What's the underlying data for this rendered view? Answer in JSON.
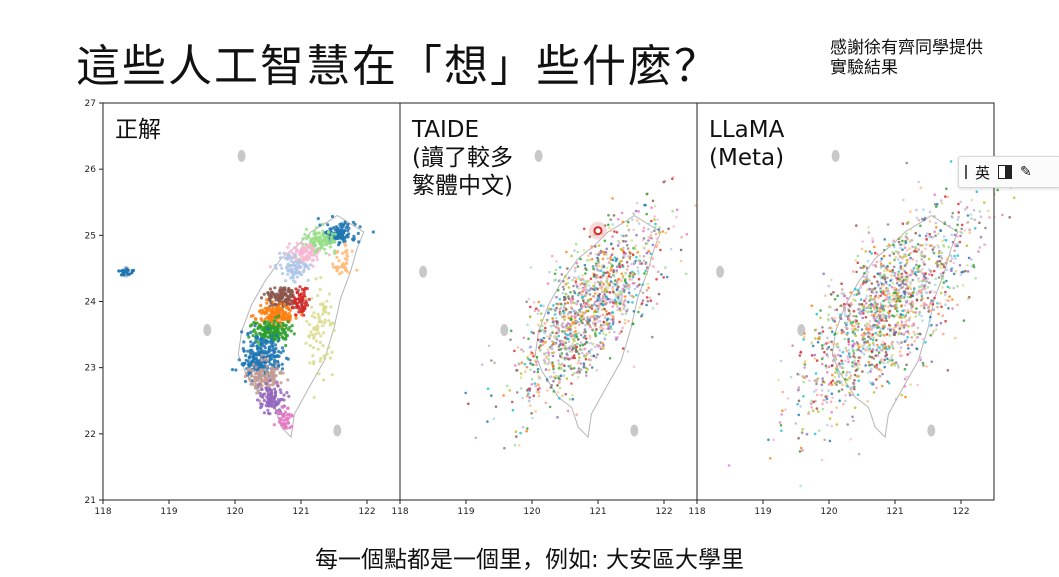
{
  "title": "這些人工智慧在「想」些什麼？",
  "credit": [
    "感謝徐有齊同學提供",
    "實驗結果"
  ],
  "caption": "每一個點都是一個里，例如: 大安區大學里",
  "ime_toolbar": {
    "lang_label": "英",
    "mode_icon": "half-width-icon",
    "tool_icon": "settings-icon"
  },
  "chart_data": [
    {
      "type": "scatter",
      "panel_label": [
        "正解"
      ],
      "xlim": [
        118,
        122.5
      ],
      "ylim": [
        21,
        27
      ],
      "xticks": [
        118,
        119,
        120,
        121,
        122
      ],
      "yticks": [
        21,
        22,
        23,
        24,
        25,
        26,
        27
      ],
      "ytick_labels": [
        "21",
        "22",
        "23",
        "24",
        "25",
        "26",
        "27"
      ],
      "xtick_labels": [
        "118",
        "119",
        "120",
        "121",
        "122"
      ]
    },
    {
      "type": "scatter",
      "panel_label": [
        "TAIDE",
        "(讀了較多",
        "繁體中文)"
      ],
      "xlim": [
        118,
        122.5
      ],
      "ylim": [
        21,
        27
      ],
      "xticks": [
        118,
        119,
        120,
        121,
        122
      ],
      "xtick_labels": [
        "118",
        "119",
        "120",
        "121",
        "122"
      ]
    },
    {
      "type": "scatter",
      "panel_label": [
        "LLaMA",
        "(Meta)"
      ],
      "xlim": [
        118,
        122.5
      ],
      "ylim": [
        21,
        27
      ],
      "xticks": [
        118,
        119,
        120,
        121,
        122
      ],
      "xtick_labels": [
        "118",
        "119",
        "120",
        "121",
        "122"
      ]
    }
  ]
}
